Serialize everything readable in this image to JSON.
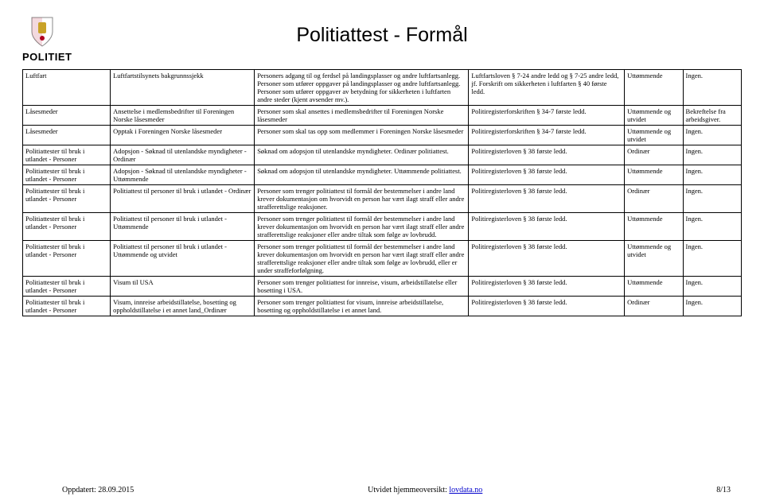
{
  "header": {
    "brand": "POLITIET",
    "title": "Politiattest - Formål"
  },
  "table": {
    "rows": [
      {
        "c1": "Luftfart",
        "c2": "Luftfartstilsynets bakgrunnssjekk",
        "c3": "Personers adgang til og ferdsel på landingsplasser og andre luftfartsanlegg. Personer som utfører oppgaver på landingsplasser og andre luftfartsanlegg. Personer som utfører oppgaver av betydning for sikkerheten i luftfarten andre steder (kjent avsender mv.).",
        "c4": "Luftfartsloven § 7-24 andre ledd og § 7-25 andre ledd, jf. Forskrift om sikkerheten i luftfarten § 40 første ledd.",
        "c5": "Uttømmende",
        "c6": "Ingen."
      },
      {
        "c1": "Låsesmeder",
        "c2": "Ansettelse i medlemsbedrifter til Foreningen Norske låsesmeder",
        "c3": "Personer som skal ansettes i medlemsbedrifter til Foreningen Norske låsesmeder",
        "c4": "Politiregisterforskriften § 34-7 første ledd.",
        "c5": "Uttømmende og utvidet",
        "c6": "Bekreftelse fra arbeidsgiver."
      },
      {
        "c1": "Låsesmeder",
        "c2": "Opptak i Foreningen Norske låsesmeder",
        "c3": "Personer som skal tas opp som medlemmer i Foreningen Norske låsesmeder",
        "c4": "Politiregisterforskriften § 34-7 første ledd.",
        "c5": "Uttømmende og utvidet",
        "c6": "Ingen."
      },
      {
        "c1": "Politiattester til bruk i utlandet - Personer",
        "c2": "Adopsjon - Søknad til utenlandske myndigheter - Ordinær",
        "c3": "Søknad om adopsjon til utenlandske myndigheter. Ordinær politiattest.",
        "c4": "Politiregisterloven § 38 første ledd.",
        "c5": "Ordinær",
        "c6": "Ingen."
      },
      {
        "c1": "Politiattester til bruk i utlandet - Personer",
        "c2": "Adopsjon - Søknad til utenlandske myndigheter - Uttømmende",
        "c3": "Søknad om adopsjon til utenlandske myndigheter. Uttømmende politiattest.",
        "c4": "Politiregisterloven § 38 første ledd.",
        "c5": "Uttømmende",
        "c6": "Ingen."
      },
      {
        "c1": "Politiattester til bruk i utlandet - Personer",
        "c2": "Politiattest til personer til bruk i utlandet - Ordinær",
        "c3": "Personer som trenger politiattest til formål der bestemmelser i andre land krever dokumentasjon om hvorvidt en person har vært ilagt straff eller andre strafferettslige reaksjoner.",
        "c4": "Politiregisterloven § 38 første ledd.",
        "c5": "Ordinær",
        "c6": "Ingen."
      },
      {
        "c1": "Politiattester til bruk i utlandet - Personer",
        "c2": "Politiattest til personer til bruk i utlandet - Uttømmende",
        "c3": "Personer som trenger politiattest til formål der bestemmelser i andre land krever dokumentasjon om hvorvidt en person har vært ilagt straff eller andre strafferettslige reaksjoner eller andre tiltak som følge av lovbrudd.",
        "c4": "Politiregisterloven § 38 første ledd.",
        "c5": "Uttømmende",
        "c6": "Ingen."
      },
      {
        "c1": "Politiattester til bruk i utlandet - Personer",
        "c2": "Politiattest til personer til bruk i utlandet - Uttømmende og utvidet",
        "c3": "Personer som trenger politiattest til formål der bestemmelser i andre land krever dokumentasjon om hvorvidt en person har vært ilagt straff eller andre strafferettslige reaksjoner eller andre tiltak som følge av lovbrudd, eller er under straffeforfølgning.",
        "c4": "Politiregisterloven § 38 første ledd.",
        "c5": "Uttømmende og utvidet",
        "c6": "Ingen."
      },
      {
        "c1": "Politiattester til bruk i utlandet - Personer",
        "c2": "Visum til USA",
        "c3": "Personer som trenger politiattest for innreise, visum, arbeidstillatelse eller bosetting i USA.",
        "c4": "Politiregisterloven § 38 første ledd.",
        "c5": "Uttømmende",
        "c6": "Ingen."
      },
      {
        "c1": "Politiattester til bruk i utlandet - Personer",
        "c2": "Visum, innreise arbeidstillatelse, bosetting og oppholdstillatelse i et annet land_Ordinær",
        "c3": "Personer som trenger politiattest for visum, innreise arbeidstillatelse, bosetting og oppholdstillatelse i et annet land.",
        "c4": "Politiregisterloven § 38 første ledd.",
        "c5": "Ordinær",
        "c6": "Ingen."
      }
    ]
  },
  "footer": {
    "left": "Oppdatert: 28.09.2015",
    "center_prefix": "Utvidet hjemmeoversikt: ",
    "center_link": "lovdata.no",
    "right": "8/13"
  },
  "colors": {
    "text": "#000000",
    "link": "#0000cc",
    "shield_red": "#b00020",
    "shield_gold": "#c9a227"
  }
}
